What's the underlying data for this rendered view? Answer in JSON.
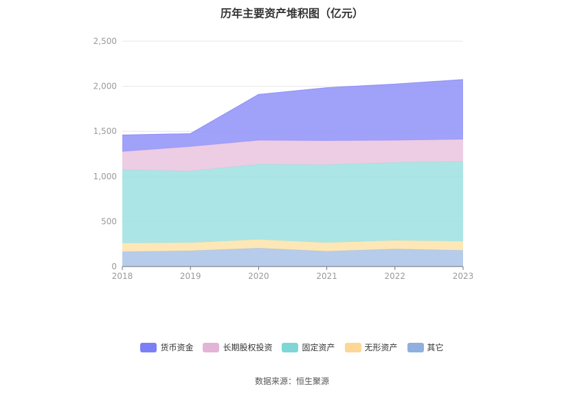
{
  "title": "历年主要资产堆积图（亿元）",
  "source": "数据来源：恒生聚源",
  "colors": {
    "货币资金": "#8f91f7",
    "长期股权投资": "#eac4df",
    "固定资产": "#9ee0e0",
    "无形资产": "#fde3aa",
    "其它": "#a9c3e6"
  },
  "legend_colors": {
    "货币资金": "#7b7ff5",
    "长期股权投资": "#e4b4d6",
    "固定资产": "#7fd6d6",
    "无形资产": "#fdd796",
    "其它": "#8fb0df"
  },
  "chart_data": {
    "type": "area",
    "stacked": true,
    "title": "历年主要资产堆积图（亿元）",
    "x": [
      "2018",
      "2019",
      "2020",
      "2021",
      "2022",
      "2023"
    ],
    "ylim": [
      0,
      2500
    ],
    "yticks": [
      "0",
      "500",
      "1,000",
      "1,500",
      "2,000",
      "2,500"
    ],
    "ytick_values": [
      0,
      500,
      1000,
      1500,
      2000,
      2500
    ],
    "grid": true,
    "legend_position": "bottom",
    "series": [
      {
        "name": "其它",
        "values": [
          165,
          175,
          205,
          170,
          195,
          180
        ]
      },
      {
        "name": "无形资产",
        "values": [
          95,
          90,
          95,
          95,
          95,
          100
        ]
      },
      {
        "name": "固定资产",
        "values": [
          815,
          795,
          835,
          865,
          865,
          885
        ]
      },
      {
        "name": "长期股权投资",
        "values": [
          200,
          270,
          265,
          265,
          245,
          245
        ]
      },
      {
        "name": "货币资金",
        "values": [
          185,
          145,
          510,
          590,
          625,
          665
        ]
      }
    ],
    "legend_order": [
      "货币资金",
      "长期股权投资",
      "固定资产",
      "无形资产",
      "其它"
    ]
  }
}
